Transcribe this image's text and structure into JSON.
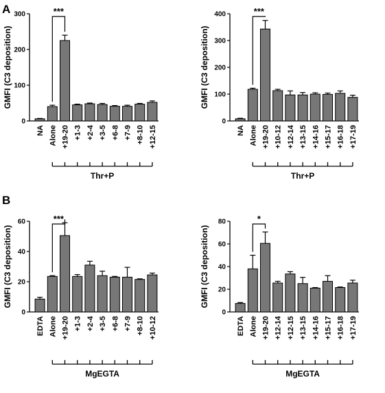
{
  "panel_labels": [
    "A",
    "B"
  ],
  "chart_data": [
    {
      "type": "bar",
      "panel": "A",
      "ylabel": "GMFI (C3 deposition)",
      "ylim": [
        0,
        300
      ],
      "yticks": [
        "0",
        "100",
        "200",
        "300"
      ],
      "categories": [
        "NA",
        "Alone",
        "+19-20",
        "+1-3",
        "+2-4",
        "+3-5",
        "+6-8",
        "+7-9",
        "+8-10",
        "+12-15"
      ],
      "values": [
        6,
        40,
        225,
        45,
        48,
        46,
        41,
        41,
        47,
        52
      ],
      "errors": [
        1,
        4,
        15,
        2,
        2,
        3,
        2,
        3,
        2,
        4
      ],
      "group_label": "Thr+P",
      "group_start": 1,
      "significance": {
        "from": 1,
        "to": 2,
        "label": "***"
      }
    },
    {
      "type": "bar",
      "panel": "A",
      "ylabel": "GMFI (C3 deposition)",
      "ylim": [
        0,
        400
      ],
      "yticks": [
        "0",
        "100",
        "200",
        "300",
        "400"
      ],
      "categories": [
        "NA",
        "Alone",
        "+19-20",
        "+10-12",
        "+12-14",
        "+13-15",
        "+14-16",
        "+15-17",
        "+16-18",
        "+17-19"
      ],
      "values": [
        8,
        118,
        343,
        113,
        97,
        97,
        100,
        99,
        103,
        88
      ],
      "errors": [
        2,
        4,
        32,
        5,
        15,
        9,
        5,
        5,
        9,
        8
      ],
      "group_label": "Thr+P",
      "group_start": 1,
      "significance": {
        "from": 1,
        "to": 2,
        "label": "***"
      }
    },
    {
      "type": "bar",
      "panel": "B",
      "ylabel": "GMFI (C3 deposition)",
      "ylim": [
        0,
        60
      ],
      "yticks": [
        "0",
        "20",
        "40",
        "60"
      ],
      "categories": [
        "EDTA",
        "Alone",
        "+19-20",
        "+1-3",
        "+2-4",
        "+3-5",
        "+6-8",
        "+7-9",
        "+8-10",
        "+10-12"
      ],
      "values": [
        8.5,
        23.5,
        50.5,
        23.5,
        31,
        24,
        23,
        23,
        21.5,
        24.5
      ],
      "errors": [
        1.2,
        0.5,
        8.5,
        1.2,
        2.5,
        3,
        0.5,
        6.5,
        0.4,
        1.2
      ],
      "group_label": "MgEGTA",
      "group_start": 1,
      "significance": {
        "from": 1,
        "to": 2,
        "label": "***"
      }
    },
    {
      "type": "bar",
      "panel": "B",
      "ylabel": "GMFI (C3 deposition)",
      "ylim": [
        0,
        80
      ],
      "yticks": [
        "0",
        "20",
        "40",
        "60",
        "80"
      ],
      "categories": [
        "EDTA",
        "Alone",
        "+19-20",
        "+12-14",
        "+12-15",
        "+13-15",
        "+14-16",
        "+15-17",
        "+16-18",
        "+17-19"
      ],
      "values": [
        7.5,
        38,
        60.5,
        25.5,
        33.5,
        25,
        21,
        27,
        21.5,
        25.5
      ],
      "errors": [
        0.8,
        12,
        10,
        1.5,
        2,
        5.5,
        0.5,
        5,
        0.5,
        2.5
      ],
      "group_label": "MgEGTA",
      "group_start": 1,
      "significance": {
        "from": 1,
        "to": 2,
        "label": "*"
      }
    }
  ]
}
